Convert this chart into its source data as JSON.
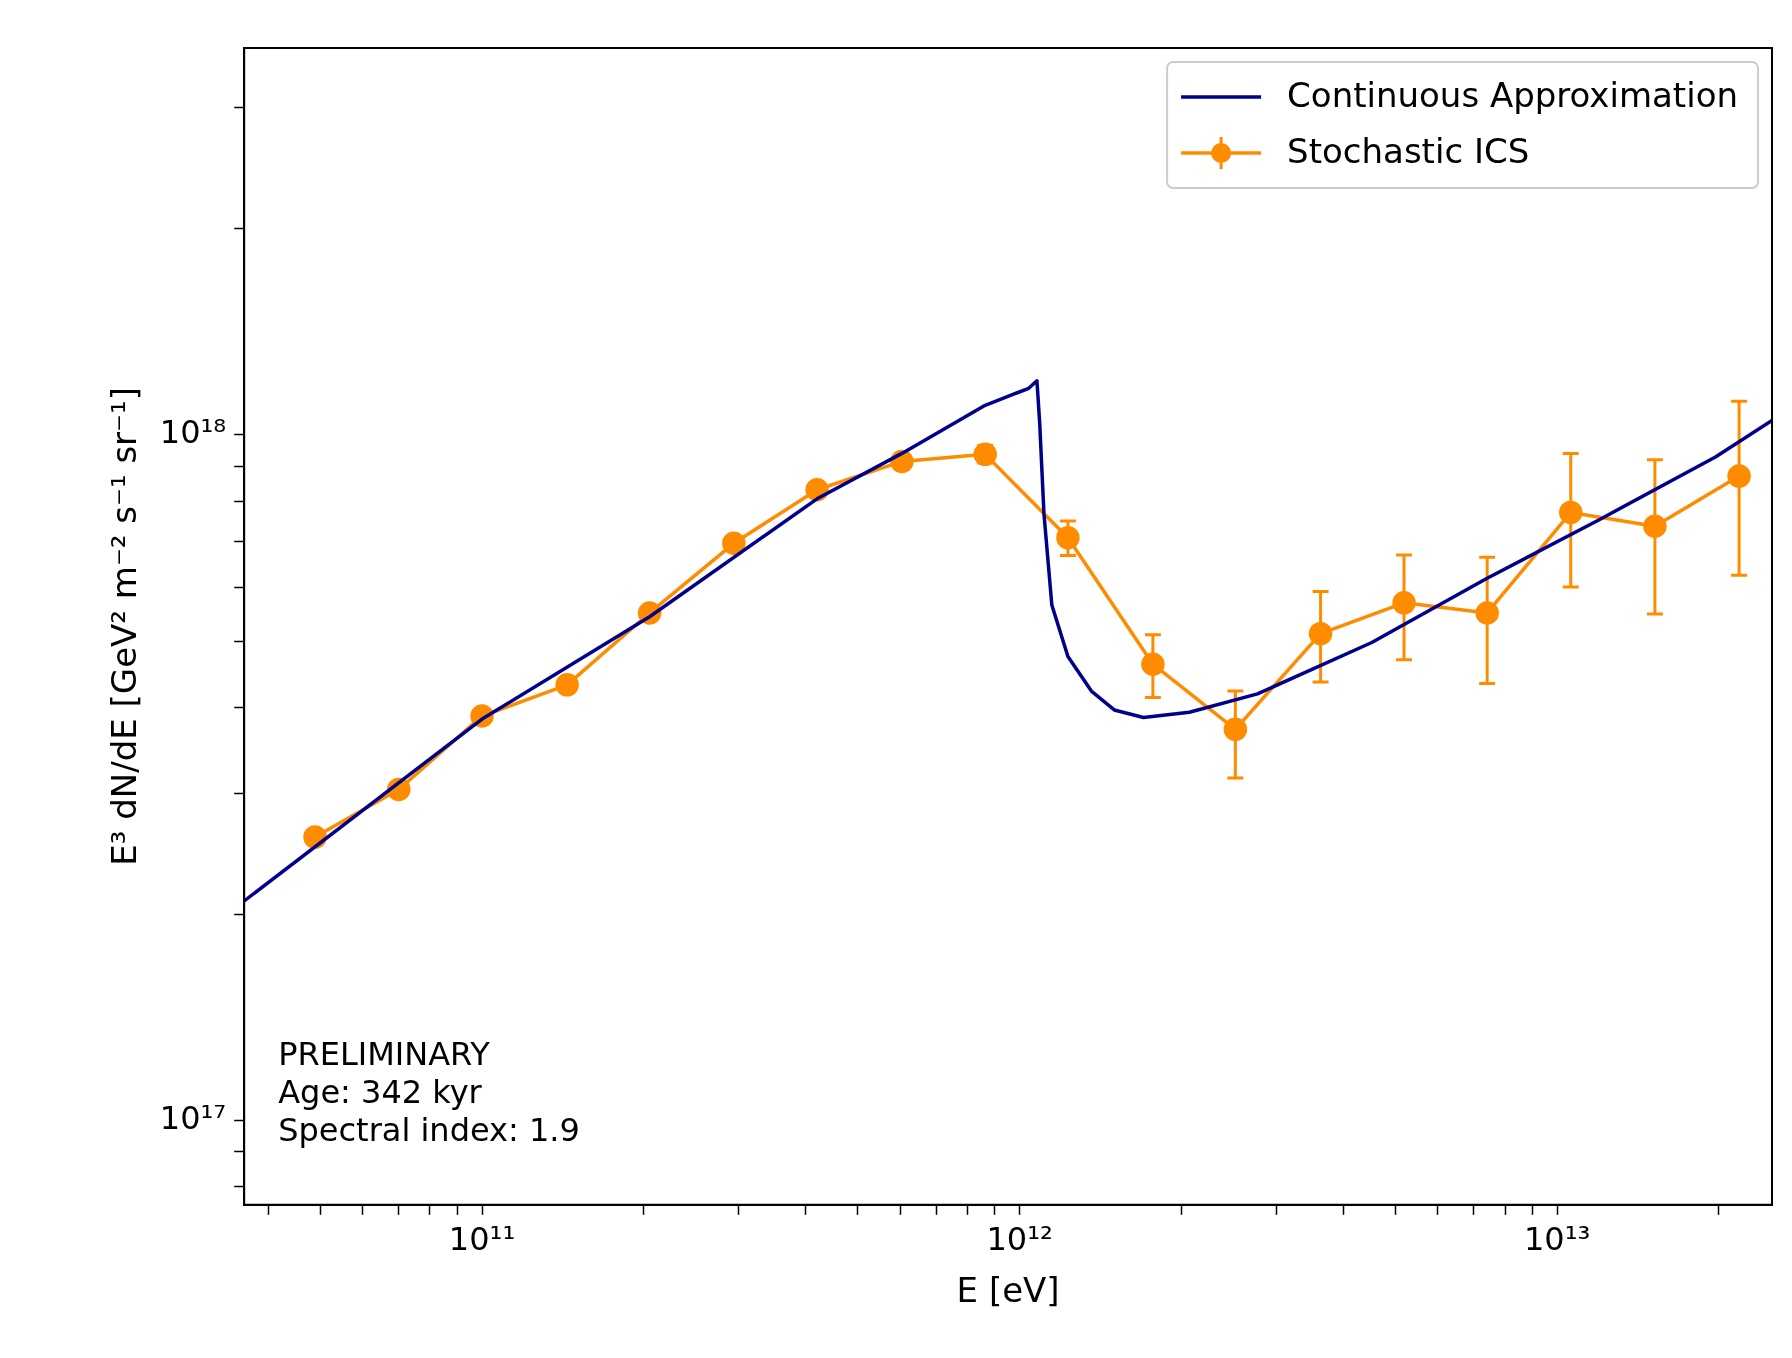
{
  "chart_data": {
    "type": "line",
    "xlabel": "E [eV]",
    "ylabel": "E³ dN/dE [GeV² m⁻² s⁻¹ sr⁻¹]",
    "log": "xy",
    "grid": false,
    "legend": "top right",
    "xlim": [
      36100000000.0,
      25100000000000.0
    ],
    "ylim": [
      7.53e+16,
      3.67e+18
    ],
    "xticks": [
      {
        "value": 40000000000.0,
        "label": null
      },
      {
        "value": 50000000000.0,
        "label": null
      },
      {
        "value": 60000000000.0,
        "label": null
      },
      {
        "value": 70000000000.0,
        "label": null
      },
      {
        "value": 80000000000.0,
        "label": null
      },
      {
        "value": 90000000000.0,
        "label": null
      },
      {
        "value": 100000000000.0,
        "label": "10¹¹"
      },
      {
        "value": 200000000000.0,
        "label": null
      },
      {
        "value": 300000000000.0,
        "label": null
      },
      {
        "value": 400000000000.0,
        "label": null
      },
      {
        "value": 500000000000.0,
        "label": null
      },
      {
        "value": 600000000000.0,
        "label": null
      },
      {
        "value": 700000000000.0,
        "label": null
      },
      {
        "value": 800000000000.0,
        "label": null
      },
      {
        "value": 900000000000.0,
        "label": null
      },
      {
        "value": 1000000000000.0,
        "label": "10¹²"
      },
      {
        "value": 2000000000000.0,
        "label": null
      },
      {
        "value": 3000000000000.0,
        "label": null
      },
      {
        "value": 4000000000000.0,
        "label": null
      },
      {
        "value": 5000000000000.0,
        "label": null
      },
      {
        "value": 6000000000000.0,
        "label": null
      },
      {
        "value": 7000000000000.0,
        "label": null
      },
      {
        "value": 8000000000000.0,
        "label": null
      },
      {
        "value": 9000000000000.0,
        "label": null
      },
      {
        "value": 10000000000000.0,
        "label": "10¹³"
      },
      {
        "value": 20000000000000.0,
        "label": null
      }
    ],
    "yticks": [
      {
        "value": 8e+16,
        "label": null
      },
      {
        "value": 9e+16,
        "label": null
      },
      {
        "value": 1e+17,
        "label": "10¹⁷"
      },
      {
        "value": 2e+17,
        "label": null
      },
      {
        "value": 3e+17,
        "label": null
      },
      {
        "value": 4e+17,
        "label": null
      },
      {
        "value": 5e+17,
        "label": null
      },
      {
        "value": 6e+17,
        "label": null
      },
      {
        "value": 7e+17,
        "label": null
      },
      {
        "value": 8e+17,
        "label": null
      },
      {
        "value": 9e+17,
        "label": null
      },
      {
        "value": 1e+18,
        "label": "10¹⁸"
      },
      {
        "value": 2e+18,
        "label": null
      },
      {
        "value": 3e+18,
        "label": null
      }
    ],
    "series": [
      {
        "name": "Continuous Approximation",
        "color": "#00008b",
        "marker": "none",
        "x": [
          36100000000.0,
          100000000000.0,
          205000000000.0,
          420000000000.0,
          604000000000.0,
          863000000000.0,
          1040000000000.0,
          1077000000000.0,
          1090000000000.0,
          1110000000000.0,
          1148000000000.0,
          1230000000000.0,
          1360000000000.0,
          1500000000000.0,
          1700000000000.0,
          2070000000000.0,
          2770000000000.0,
          4520000000000.0,
          7380000000000.0,
          12000000000000.0,
          19700000000000.0,
          25100000000000.0
        ],
        "values": [
          2.09e+17,
          3.85e+17,
          5.43e+17,
          8.07e+17,
          9.4e+17,
          1.105e+18,
          1.17e+18,
          1.2e+18,
          1.04e+18,
          7.67e+17,
          5.65e+17,
          4.75e+17,
          4.23e+17,
          3.97e+17,
          3.87e+17,
          3.94e+17,
          4.19e+17,
          4.98e+17,
          6.17e+17,
          7.53e+17,
          9.29e+17,
          1.05e+18
        ]
      },
      {
        "name": "Stochastic ICS",
        "color": "#ff8c00",
        "marker": "circle",
        "x": [
          48900000000.0,
          70000000000.0,
          100000000000.0,
          144000000000.0,
          205000000000.0,
          294000000000.0,
          420000000000.0,
          604000000000.0,
          863000000000.0,
          1230000000000.0,
          1770000000000.0,
          2520000000000.0,
          3630000000000.0,
          5190000000000.0,
          7410000000000.0,
          10600000000000.0,
          15200000000000.0,
          21800000000000.0
        ],
        "values": [
          2.59e+17,
          3.04e+17,
          3.89e+17,
          4.32e+17,
          5.5e+17,
          6.95e+17,
          8.32e+17,
          9.15e+17,
          9.37e+17,
          7.08e+17,
          4.63e+17,
          3.72e+17,
          5.13e+17,
          5.69e+17,
          5.5e+17,
          7.71e+17,
          7.36e+17,
          8.71e+17
        ],
        "errors": [
          null,
          null,
          null,
          null,
          null,
          null,
          null,
          [
            8.92e+17,
            9.39e+17
          ],
          [
            9.1e+17,
            9.65e+17
          ],
          [
            6.67e+17,
            7.49e+17
          ],
          [
            4.14e+17,
            5.11e+17
          ],
          [
            3.16e+17,
            4.23e+17
          ],
          [
            4.36e+17,
            5.91e+17
          ],
          [
            4.7e+17,
            6.68e+17
          ],
          [
            4.34e+17,
            6.63e+17
          ],
          [
            6e+17,
            9.4e+17
          ],
          [
            5.48e+17,
            9.2e+17
          ],
          [
            6.24e+17,
            1.12e+18
          ]
        ]
      }
    ],
    "annotations": [
      "PRELIMINARY",
      "Age: 342 kyr",
      "Spectral index: 1.9"
    ]
  }
}
